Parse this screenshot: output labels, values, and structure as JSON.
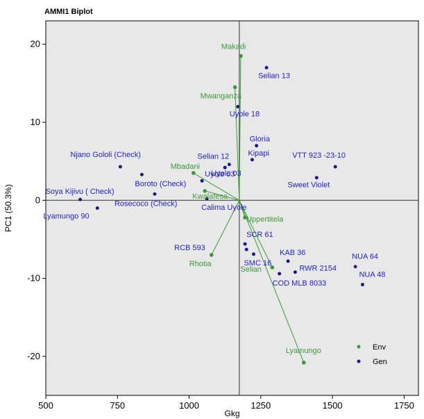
{
  "chart_data": {
    "type": "scatter",
    "title": "AMMI1 Biplot",
    "xlabel": "Gkg",
    "ylabel": "PC1 (50.3%)",
    "xlim": [
      500,
      1800
    ],
    "ylim": [
      -25,
      23
    ],
    "xticks": [
      500,
      750,
      1000,
      1250,
      1500,
      1750
    ],
    "yticks": [
      -20,
      -10,
      0,
      10,
      20
    ],
    "reference_lines": {
      "x": 1175,
      "y": 0
    },
    "legend": {
      "position": "bottom-right",
      "entries": [
        "Env",
        "Gen"
      ]
    },
    "colors": {
      "env": "#3a9a3a",
      "gen": "#1a1a80",
      "gen_label": "#2222cc",
      "background": "#e8e8e8"
    },
    "origin": {
      "x": 1175,
      "y": 0
    },
    "environments": [
      {
        "name": "Makadi",
        "x": 1180,
        "y": 18.5
      },
      {
        "name": "Mwanganza",
        "x": 1160,
        "y": 14.5
      },
      {
        "name": "Mbadani",
        "x": 1015,
        "y": 3.5
      },
      {
        "name": "Kwalafesa",
        "x": 1055,
        "y": 1.2
      },
      {
        "name": "Uppertitela",
        "x": 1195,
        "y": -2.2
      },
      {
        "name": "Rhotia",
        "x": 1078,
        "y": -7.0
      },
      {
        "name": "Selian",
        "x": 1290,
        "y": -8.6
      },
      {
        "name": "Lyamungo",
        "x": 1400,
        "y": -20.8
      }
    ],
    "genotypes": [
      {
        "name": "Selian 13",
        "x": 1270,
        "y": 17.0
      },
      {
        "name": "Uyole 18",
        "x": 1170,
        "y": 12.0
      },
      {
        "name": "Gloria",
        "x": 1235,
        "y": 7.0
      },
      {
        "name": "Kipapi",
        "x": 1220,
        "y": 5.2
      },
      {
        "name": "Selian 12",
        "x": 1140,
        "y": 4.6
      },
      {
        "name": "Uyole 03",
        "x": 1125,
        "y": 4.2
      },
      {
        "name": "Njano Gololi (Check)",
        "x": 760,
        "y": 4.3
      },
      {
        "name": "VTT 923 -23-10",
        "x": 1510,
        "y": 4.3
      },
      {
        "name": "Boroto (Check)",
        "x": 835,
        "y": 3.3
      },
      {
        "name": "Sweet Violet",
        "x": 1445,
        "y": 2.9
      },
      {
        "name": "Uyole 03",
        "x": 1045,
        "y": 2.5
      },
      {
        "name": "Rosecoco (Check)",
        "x": 880,
        "y": 0.8
      },
      {
        "name": "Calima Uyole",
        "x": 1062,
        "y": 0.2
      },
      {
        "name": "Soya Kijivu ( Check)",
        "x": 620,
        "y": 0.1
      },
      {
        "name": "Lyamungo 90",
        "x": 680,
        "y": -1.0
      },
      {
        "name": "SCR 61",
        "x": 1195,
        "y": -5.6
      },
      {
        "name": "RCB 593",
        "x": 1200,
        "y": -6.3
      },
      {
        "name": "SMC 16",
        "x": 1225,
        "y": -6.9
      },
      {
        "name": "KAB 36",
        "x": 1345,
        "y": -7.8
      },
      {
        "name": "NUA 64",
        "x": 1580,
        "y": -8.5
      },
      {
        "name": "RWR 2154",
        "x": 1370,
        "y": -9.2
      },
      {
        "name": "COD MLB 8033",
        "x": 1315,
        "y": -9.4
      },
      {
        "name": "NUA 48",
        "x": 1605,
        "y": -10.8
      }
    ]
  }
}
